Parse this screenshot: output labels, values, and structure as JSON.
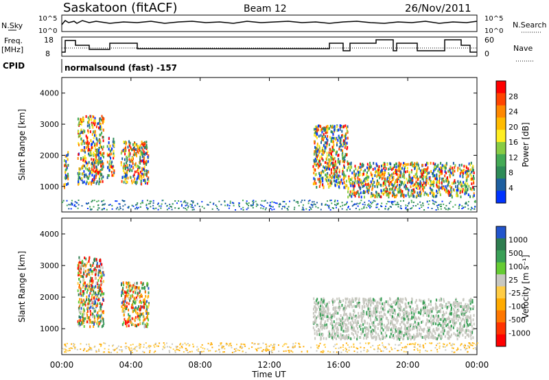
{
  "header": {
    "radar": "Saskatoon (fitACF)",
    "beam": "Beam 12",
    "date": "26/Nov/2011"
  },
  "status_panels": {
    "nsky_label": "N.Sky",
    "nsky_ticks": [
      "10^5",
      "10^0"
    ],
    "nsearch_label": "N.Search",
    "nsearch_ticks": [
      "10^5",
      "10^0"
    ],
    "freq_label_line1": "Freq.",
    "freq_label_line2": "[MHz]",
    "freq_ticks": [
      "18",
      "8"
    ],
    "nave_label": "Nave",
    "nave_ticks": [
      "60",
      "0"
    ],
    "cpid_label": "CPID",
    "cpid_value": "normalsound (fast) -157"
  },
  "chart_data": [
    {
      "type": "heatmap",
      "name": "power-panel",
      "xlabel": "",
      "ylabel": "Slant Range [km]",
      "x_ticks": [
        "00:00",
        "04:00",
        "08:00",
        "12:00",
        "16:00",
        "20:00",
        "00:00"
      ],
      "x_range_hours": [
        0,
        24
      ],
      "y_ticks": [
        1000,
        2000,
        3000,
        4000
      ],
      "y_range_km": [
        180,
        4500
      ],
      "colorbar_label": "Power [dB]",
      "colorbar_ticks": [
        "28",
        "24",
        "20",
        "16",
        "12",
        "8",
        "4"
      ],
      "colors": [
        "#ff0000",
        "#ff4400",
        "#ff8800",
        "#ffbb00",
        "#ffee22",
        "#88cc44",
        "#44aa55",
        "#2e8b57",
        "#1e5fa0",
        "#0033ff"
      ],
      "regions": [
        {
          "x": [
            0.1,
            0.35
          ],
          "y": [
            1000,
            2200
          ]
        },
        {
          "x": [
            0.9,
            2.4
          ],
          "y": [
            1100,
            3300
          ]
        },
        {
          "x": [
            2.6,
            3.0
          ],
          "y": [
            1300,
            2600
          ]
        },
        {
          "x": [
            3.4,
            5.0
          ],
          "y": [
            1100,
            2500
          ]
        },
        {
          "x": [
            14.5,
            16.5
          ],
          "y": [
            1000,
            3000
          ]
        },
        {
          "x": [
            16.5,
            23.8
          ],
          "y": [
            700,
            1800
          ]
        }
      ],
      "grid": false
    },
    {
      "type": "heatmap",
      "name": "velocity-panel",
      "xlabel": "Time UT",
      "ylabel": "Slant Range [km]",
      "x_ticks": [
        "00:00",
        "04:00",
        "08:00",
        "12:00",
        "16:00",
        "20:00",
        "00:00"
      ],
      "x_range_hours": [
        0,
        24
      ],
      "y_ticks": [
        1000,
        2000,
        3000,
        4000
      ],
      "y_range_km": [
        180,
        4500
      ],
      "colorbar_label": "Velocity [m s⁻¹]",
      "colorbar_ticks": [
        "1000",
        "500",
        "100",
        "25",
        "-25",
        "-100",
        "-500",
        "-1000"
      ],
      "colors": [
        "#2255cc",
        "#2e7d4f",
        "#3aa057",
        "#66cc33",
        "#c8c8c0",
        "#ffcc44",
        "#ffaa00",
        "#ff7700",
        "#ff3300",
        "#ff0000"
      ],
      "regions": [
        {
          "x": [
            0.9,
            2.4
          ],
          "y": [
            1100,
            3300
          ]
        },
        {
          "x": [
            3.4,
            5.0
          ],
          "y": [
            1100,
            2500
          ]
        },
        {
          "x": [
            14.5,
            23.8
          ],
          "y": [
            700,
            2000
          ]
        }
      ],
      "grid": false
    }
  ]
}
